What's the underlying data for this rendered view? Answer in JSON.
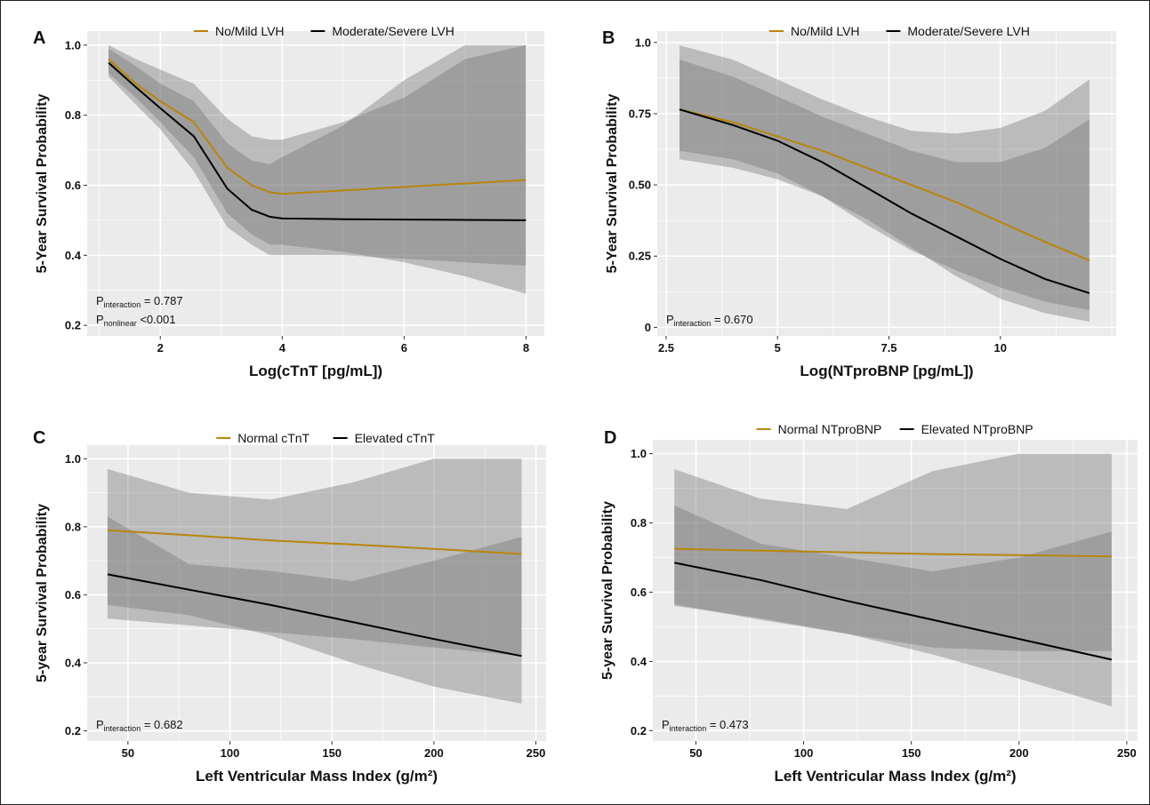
{
  "chart_data": [
    {
      "type": "line",
      "panel": "A",
      "xlabel": "Log(cTnT [pg/mL])",
      "ylabel": "5-Year Survival Probability",
      "xlim": [
        0.8,
        8.3
      ],
      "ylim": [
        0.17,
        1.04
      ],
      "xticks": [
        2,
        4,
        6,
        8
      ],
      "xtick_labels": [
        "2",
        "4",
        "6",
        "8"
      ],
      "yticks": [
        0.2,
        0.4,
        0.6,
        0.8,
        1.0
      ],
      "ytick_labels": [
        "0.2",
        "0.4",
        "0.6",
        "0.8",
        "1.0"
      ],
      "grid": true,
      "legend_position": "top",
      "series": [
        {
          "name": "No/Mild LVH",
          "color": "#b8860b",
          "x": [
            1.15,
            1.6,
            2.0,
            2.55,
            3.1,
            3.5,
            3.8,
            4.0,
            5.0,
            6.0,
            7.0,
            8.0
          ],
          "values": [
            0.96,
            0.89,
            0.84,
            0.78,
            0.65,
            0.6,
            0.58,
            0.575,
            0.585,
            0.595,
            0.605,
            0.615
          ],
          "lower": [
            0.92,
            0.85,
            0.78,
            0.68,
            0.52,
            0.46,
            0.43,
            0.43,
            0.41,
            0.38,
            0.34,
            0.29
          ],
          "upper": [
            1.0,
            0.96,
            0.93,
            0.89,
            0.79,
            0.74,
            0.73,
            0.73,
            0.78,
            0.85,
            0.96,
            1.0
          ]
        },
        {
          "name": "Moderate/Severe LVH",
          "color": "#000000",
          "x": [
            1.15,
            1.6,
            2.0,
            2.55,
            3.1,
            3.5,
            3.8,
            4.0,
            5.0,
            6.0,
            7.0,
            8.0
          ],
          "values": [
            0.95,
            0.88,
            0.82,
            0.74,
            0.59,
            0.53,
            0.51,
            0.505,
            0.503,
            0.502,
            0.501,
            0.5
          ],
          "lower": [
            0.91,
            0.83,
            0.76,
            0.64,
            0.48,
            0.43,
            0.4,
            0.4,
            0.4,
            0.39,
            0.38,
            0.37
          ],
          "upper": [
            0.99,
            0.94,
            0.89,
            0.84,
            0.72,
            0.67,
            0.66,
            0.68,
            0.77,
            0.9,
            1.0,
            1.0
          ]
        }
      ],
      "annotations": [
        {
          "prefix": "P",
          "sub": "interaction",
          "suffix": " = 0.787"
        },
        {
          "prefix": "P",
          "sub": "nonlinear",
          "suffix": " <0.001"
        }
      ]
    },
    {
      "type": "line",
      "panel": "B",
      "xlabel": "Log(NTproBNP [pg/mL])",
      "ylabel": "5-Year Survival Probability",
      "xlim": [
        2.3,
        12.6
      ],
      "ylim": [
        -0.03,
        1.04
      ],
      "xticks": [
        2.5,
        5,
        7.5,
        10
      ],
      "xtick_labels": [
        "2.5",
        "5",
        "7.5",
        "10"
      ],
      "yticks": [
        0,
        0.25,
        0.5,
        0.75,
        1.0
      ],
      "ytick_labels": [
        "0",
        "0.25",
        "0.50",
        "0.75",
        "1.0"
      ],
      "grid": true,
      "legend_position": "top",
      "series": [
        {
          "name": "No/Mild LVH",
          "color": "#b8860b",
          "x": [
            2.8,
            4.0,
            5.0,
            6.0,
            7.0,
            8.0,
            9.0,
            10.0,
            11.0,
            12.0
          ],
          "values": [
            0.765,
            0.72,
            0.67,
            0.62,
            0.56,
            0.5,
            0.44,
            0.37,
            0.3,
            0.235
          ],
          "lower": [
            0.59,
            0.56,
            0.52,
            0.46,
            0.38,
            0.28,
            0.18,
            0.1,
            0.05,
            0.02
          ],
          "upper": [
            0.99,
            0.94,
            0.87,
            0.8,
            0.74,
            0.69,
            0.68,
            0.7,
            0.76,
            0.87
          ]
        },
        {
          "name": "Moderate/Severe LVH",
          "color": "#000000",
          "x": [
            2.8,
            4.0,
            5.0,
            6.0,
            7.0,
            8.0,
            9.0,
            10.0,
            11.0,
            12.0
          ],
          "values": [
            0.765,
            0.71,
            0.655,
            0.58,
            0.49,
            0.4,
            0.32,
            0.24,
            0.17,
            0.12
          ],
          "lower": [
            0.62,
            0.59,
            0.54,
            0.46,
            0.36,
            0.27,
            0.2,
            0.14,
            0.09,
            0.06
          ],
          "upper": [
            0.94,
            0.88,
            0.81,
            0.74,
            0.68,
            0.62,
            0.58,
            0.58,
            0.63,
            0.73
          ]
        }
      ],
      "annotations": [
        {
          "prefix": "P",
          "sub": "interaction",
          "suffix": " = 0.670"
        }
      ]
    },
    {
      "type": "line",
      "panel": "C",
      "xlabel": "Left Ventricular Mass Index (g/m²)",
      "ylabel": "5-year Survival Probability",
      "xlim": [
        30,
        255
      ],
      "ylim": [
        0.17,
        1.04
      ],
      "xticks": [
        50,
        100,
        150,
        200,
        250
      ],
      "xtick_labels": [
        "50",
        "100",
        "150",
        "200",
        "250"
      ],
      "yticks": [
        0.2,
        0.4,
        0.6,
        0.8,
        1.0
      ],
      "ytick_labels": [
        "0.2",
        "0.4",
        "0.6",
        "0.8",
        "1.0"
      ],
      "grid": true,
      "legend_position": "top",
      "series": [
        {
          "name": "Normal cTnT",
          "color": "#b8860b",
          "x": [
            40,
            80,
            120,
            160,
            200,
            243
          ],
          "values": [
            0.79,
            0.775,
            0.76,
            0.748,
            0.735,
            0.72
          ],
          "lower": [
            0.53,
            0.51,
            0.49,
            0.47,
            0.445,
            0.42
          ],
          "upper": [
            0.97,
            0.9,
            0.88,
            0.93,
            1.0,
            1.0
          ]
        },
        {
          "name": "Elevated cTnT",
          "color": "#000000",
          "x": [
            40,
            80,
            120,
            160,
            200,
            243
          ],
          "values": [
            0.66,
            0.615,
            0.57,
            0.52,
            0.47,
            0.42
          ],
          "lower": [
            0.57,
            0.54,
            0.48,
            0.4,
            0.33,
            0.28
          ],
          "upper": [
            0.83,
            0.69,
            0.67,
            0.64,
            0.7,
            0.77
          ]
        }
      ],
      "annotations": [
        {
          "prefix": "P",
          "sub": "interaction",
          "suffix": " = 0.682"
        }
      ]
    },
    {
      "type": "line",
      "panel": "D",
      "xlabel": "Left Ventricular Mass Index (g/m²)",
      "ylabel": "5-year Survival Probability",
      "xlim": [
        30,
        255
      ],
      "ylim": [
        0.17,
        1.04
      ],
      "xticks": [
        50,
        100,
        150,
        200,
        250
      ],
      "xtick_labels": [
        "50",
        "100",
        "150",
        "200",
        "250"
      ],
      "yticks": [
        0.2,
        0.4,
        0.6,
        0.8,
        1.0
      ],
      "ytick_labels": [
        "0.2",
        "0.4",
        "0.6",
        "0.8",
        "1.0"
      ],
      "grid": true,
      "legend_position": "top",
      "series": [
        {
          "name": "Normal NTproBNP",
          "color": "#b8860b",
          "x": [
            40,
            80,
            120,
            160,
            200,
            243
          ],
          "values": [
            0.725,
            0.72,
            0.715,
            0.71,
            0.707,
            0.703
          ],
          "lower": [
            0.56,
            0.525,
            0.48,
            0.42,
            0.35,
            0.27
          ],
          "upper": [
            0.955,
            0.87,
            0.84,
            0.95,
            1.0,
            1.0
          ]
        },
        {
          "name": "Elevated NTproBNP",
          "color": "#000000",
          "x": [
            40,
            80,
            120,
            160,
            200,
            243
          ],
          "values": [
            0.685,
            0.635,
            0.575,
            0.52,
            0.465,
            0.405
          ],
          "lower": [
            0.565,
            0.52,
            0.48,
            0.44,
            0.43,
            0.43
          ],
          "upper": [
            0.85,
            0.74,
            0.7,
            0.66,
            0.7,
            0.775
          ]
        }
      ],
      "annotations": [
        {
          "prefix": "P",
          "sub": "interaction",
          "suffix": " = 0.473"
        }
      ]
    }
  ]
}
